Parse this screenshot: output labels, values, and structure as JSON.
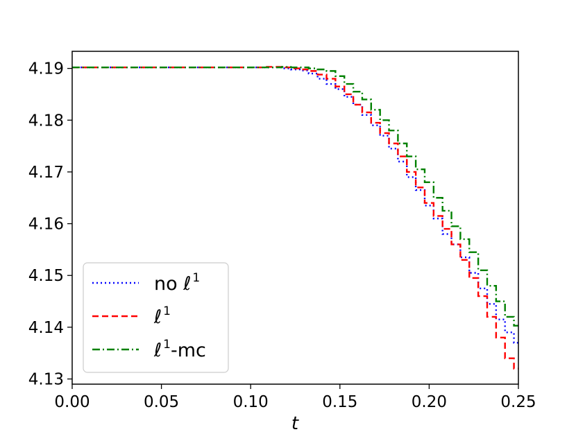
{
  "chart_data": {
    "type": "line",
    "title": "",
    "xlabel": "t",
    "ylabel": "",
    "xlim": [
      0.0,
      0.25
    ],
    "ylim": [
      4.129,
      4.1933
    ],
    "grid": false,
    "legend_position": "lower-left",
    "xticks": [
      0.0,
      0.05,
      0.1,
      0.15,
      0.2,
      0.25
    ],
    "xtick_labels": [
      "0.00",
      "0.05",
      "0.10",
      "0.15",
      "0.20",
      "0.25"
    ],
    "yticks": [
      4.13,
      4.14,
      4.15,
      4.16,
      4.17,
      4.18,
      4.19
    ],
    "ytick_labels": [
      "4.13",
      "4.14",
      "4.15",
      "4.16",
      "4.17",
      "4.18",
      "4.19"
    ],
    "series": [
      {
        "name": "no ℓ1",
        "legend_base": "no ℓ",
        "legend_sup": "1",
        "legend_suffix": "",
        "color": "#0000ff",
        "style": "dotted",
        "x": [
          0.0,
          0.1,
          0.115,
          0.12,
          0.125,
          0.13,
          0.135,
          0.14,
          0.145,
          0.15,
          0.155,
          0.16,
          0.165,
          0.17,
          0.175,
          0.18,
          0.185,
          0.19,
          0.195,
          0.2,
          0.205,
          0.21,
          0.215,
          0.22,
          0.225,
          0.23,
          0.235,
          0.24,
          0.245,
          0.25
        ],
        "y": [
          4.1902,
          4.1902,
          4.1902,
          4.19,
          4.1898,
          4.1896,
          4.189,
          4.188,
          4.187,
          4.186,
          4.1845,
          4.183,
          4.181,
          4.179,
          4.177,
          4.1745,
          4.172,
          4.169,
          4.1665,
          4.1635,
          4.161,
          4.158,
          4.156,
          4.1535,
          4.1505,
          4.1475,
          4.1445,
          4.1415,
          4.139,
          4.137
        ]
      },
      {
        "name": "ℓ1",
        "legend_base": "ℓ",
        "legend_sup": "1",
        "legend_suffix": "",
        "color": "#ff0000",
        "style": "dashed",
        "x": [
          0.0,
          0.1,
          0.115,
          0.12,
          0.125,
          0.13,
          0.135,
          0.14,
          0.145,
          0.15,
          0.155,
          0.16,
          0.165,
          0.17,
          0.175,
          0.18,
          0.185,
          0.19,
          0.195,
          0.2,
          0.205,
          0.21,
          0.215,
          0.22,
          0.225,
          0.23,
          0.235,
          0.24,
          0.245,
          0.25
        ],
        "y": [
          4.1902,
          4.1902,
          4.1903,
          4.1902,
          4.19,
          4.1898,
          4.1895,
          4.1888,
          4.188,
          4.1865,
          4.185,
          4.183,
          4.1815,
          4.1795,
          4.1775,
          4.1755,
          4.173,
          4.17,
          4.167,
          4.164,
          4.1615,
          4.159,
          4.156,
          4.153,
          4.1495,
          4.146,
          4.142,
          4.138,
          4.134,
          4.132
        ]
      },
      {
        "name": "ℓ1-mc",
        "legend_base": "ℓ",
        "legend_sup": "1",
        "legend_suffix": "-mc",
        "color": "#008000",
        "style": "dashdot",
        "x": [
          0.0,
          0.1,
          0.115,
          0.12,
          0.125,
          0.13,
          0.135,
          0.14,
          0.145,
          0.15,
          0.155,
          0.16,
          0.165,
          0.17,
          0.175,
          0.18,
          0.185,
          0.19,
          0.195,
          0.2,
          0.205,
          0.21,
          0.215,
          0.22,
          0.225,
          0.23,
          0.235,
          0.24,
          0.245,
          0.25
        ],
        "y": [
          4.1902,
          4.1902,
          4.1902,
          4.1903,
          4.1902,
          4.1902,
          4.19,
          4.1898,
          4.1895,
          4.1885,
          4.187,
          4.1855,
          4.184,
          4.182,
          4.18,
          4.178,
          4.1755,
          4.173,
          4.1705,
          4.168,
          4.165,
          4.1625,
          4.1595,
          4.157,
          4.1545,
          4.151,
          4.148,
          4.145,
          4.142,
          4.1403
        ]
      }
    ]
  }
}
